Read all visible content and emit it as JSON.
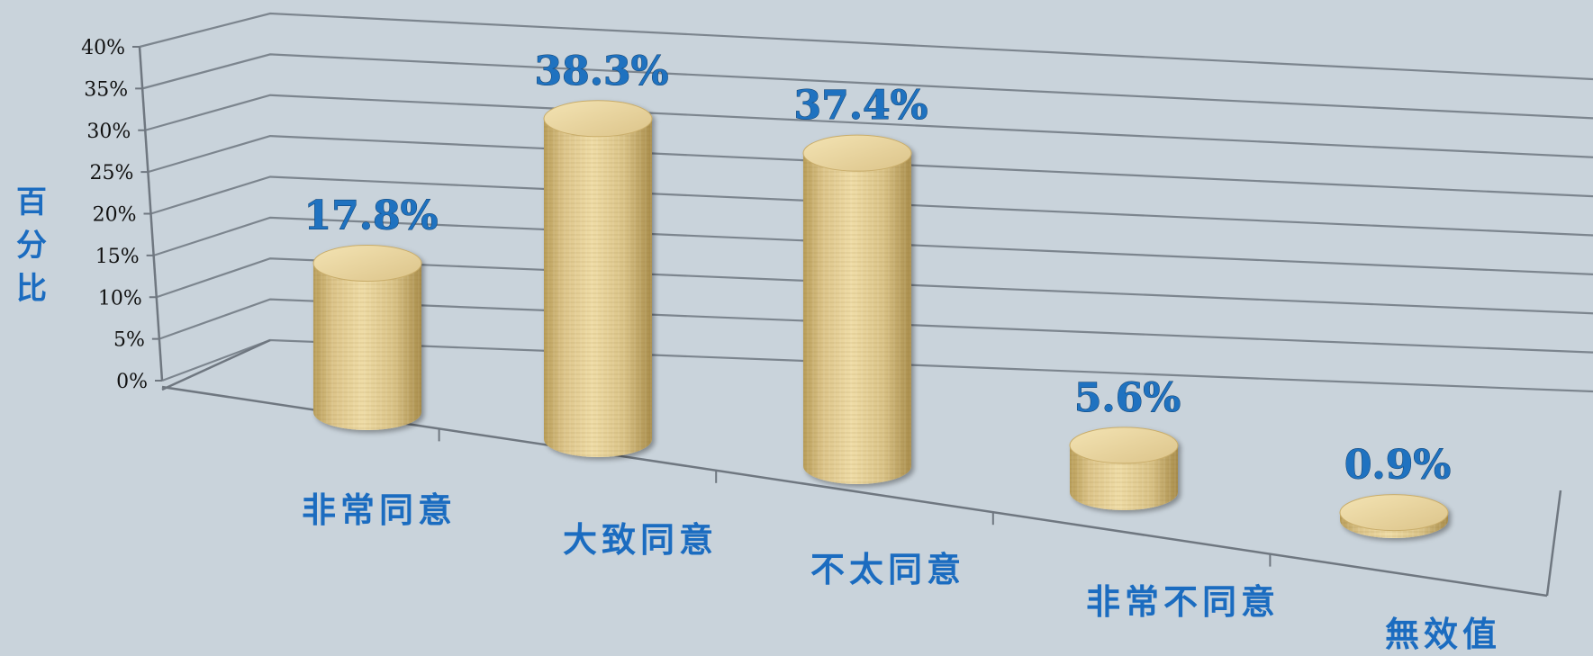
{
  "chart_data": {
    "type": "bar",
    "style": "3d-cylinder",
    "categories": [
      "非常同意",
      "大致同意",
      "不太同意",
      "非常不同意",
      "無效值"
    ],
    "values": [
      17.8,
      38.3,
      37.4,
      5.6,
      0.9
    ],
    "data_labels": [
      "17.8%",
      "38.3%",
      "37.4%",
      "5.6%",
      "0.9%"
    ],
    "ylabel": "百分比",
    "ylim": [
      0,
      40
    ],
    "yticks": [
      "0%",
      "5%",
      "10%",
      "15%",
      "20%",
      "25%",
      "30%",
      "35%",
      "40%"
    ],
    "grid": true,
    "colors": {
      "background": "#c9d3db",
      "cylinder": "#e0cb8e",
      "cylinder_dark": "#b59a55",
      "label": "#1f72c0",
      "grid": "#6f7780"
    }
  }
}
